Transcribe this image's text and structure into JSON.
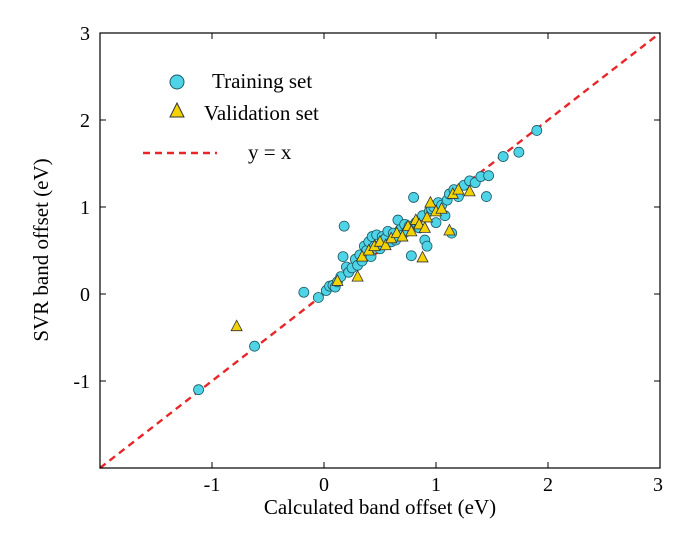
{
  "chart_data": {
    "type": "scatter",
    "xlabel": "Calculated band offset (eV)",
    "ylabel": "SVR band offset (eV)",
    "xlim": [
      -2,
      3
    ],
    "ylim": [
      -2,
      3
    ],
    "xticks": [
      -1,
      0,
      1,
      2,
      3
    ],
    "yticks": [
      -1,
      0,
      1,
      2,
      3
    ],
    "x_tick_labels": [
      "-1",
      "0",
      "1",
      "2",
      "3"
    ],
    "y_tick_labels": [
      "-1",
      "0",
      "1",
      "2",
      "3"
    ],
    "grid": false,
    "legend_position": "top-left",
    "series": [
      {
        "name": "Training set",
        "marker": "circle",
        "color": "#4fd3e6",
        "points": [
          [
            -1.12,
            -1.1
          ],
          [
            -0.62,
            -0.6
          ],
          [
            -0.18,
            0.02
          ],
          [
            -0.05,
            -0.04
          ],
          [
            0.02,
            0.04
          ],
          [
            0.05,
            0.09
          ],
          [
            0.08,
            0.1
          ],
          [
            0.1,
            0.08
          ],
          [
            0.12,
            0.14
          ],
          [
            0.15,
            0.2
          ],
          [
            0.17,
            0.43
          ],
          [
            0.18,
            0.78
          ],
          [
            0.2,
            0.31
          ],
          [
            0.22,
            0.25
          ],
          [
            0.25,
            0.3
          ],
          [
            0.28,
            0.4
          ],
          [
            0.3,
            0.33
          ],
          [
            0.32,
            0.45
          ],
          [
            0.34,
            0.38
          ],
          [
            0.36,
            0.55
          ],
          [
            0.38,
            0.5
          ],
          [
            0.4,
            0.6
          ],
          [
            0.42,
            0.43
          ],
          [
            0.43,
            0.66
          ],
          [
            0.45,
            0.55
          ],
          [
            0.47,
            0.68
          ],
          [
            0.5,
            0.52
          ],
          [
            0.52,
            0.66
          ],
          [
            0.55,
            0.64
          ],
          [
            0.57,
            0.72
          ],
          [
            0.6,
            0.6
          ],
          [
            0.62,
            0.7
          ],
          [
            0.64,
            0.62
          ],
          [
            0.66,
            0.85
          ],
          [
            0.68,
            0.74
          ],
          [
            0.7,
            0.68
          ],
          [
            0.72,
            0.8
          ],
          [
            0.74,
            0.72
          ],
          [
            0.76,
            0.78
          ],
          [
            0.78,
            0.44
          ],
          [
            0.8,
            1.11
          ],
          [
            0.82,
            0.82
          ],
          [
            0.85,
            0.76
          ],
          [
            0.88,
            0.9
          ],
          [
            0.9,
            0.62
          ],
          [
            0.92,
            0.55
          ],
          [
            0.94,
            0.95
          ],
          [
            0.96,
            0.98
          ],
          [
            0.98,
            1.0
          ],
          [
            1.0,
            0.82
          ],
          [
            1.02,
            1.05
          ],
          [
            1.05,
            1.02
          ],
          [
            1.08,
            0.9
          ],
          [
            1.1,
            1.08
          ],
          [
            1.12,
            1.15
          ],
          [
            1.14,
            0.7
          ],
          [
            1.16,
            1.2
          ],
          [
            1.2,
            1.12
          ],
          [
            1.25,
            1.25
          ],
          [
            1.3,
            1.3
          ],
          [
            1.35,
            1.28
          ],
          [
            1.4,
            1.35
          ],
          [
            1.45,
            1.12
          ],
          [
            1.47,
            1.36
          ],
          [
            1.6,
            1.58
          ],
          [
            1.74,
            1.63
          ],
          [
            1.9,
            1.88
          ]
        ]
      },
      {
        "name": "Validation set",
        "marker": "triangle",
        "color": "#f2d200",
        "points": [
          [
            -0.78,
            -0.37
          ],
          [
            0.12,
            0.15
          ],
          [
            0.3,
            0.2
          ],
          [
            0.34,
            0.43
          ],
          [
            0.4,
            0.5
          ],
          [
            0.45,
            0.55
          ],
          [
            0.5,
            0.6
          ],
          [
            0.55,
            0.56
          ],
          [
            0.6,
            0.64
          ],
          [
            0.65,
            0.7
          ],
          [
            0.7,
            0.66
          ],
          [
            0.75,
            0.78
          ],
          [
            0.78,
            0.72
          ],
          [
            0.82,
            0.85
          ],
          [
            0.85,
            0.8
          ],
          [
            0.88,
            0.42
          ],
          [
            0.9,
            0.76
          ],
          [
            0.92,
            0.88
          ],
          [
            0.95,
            1.05
          ],
          [
            1.0,
            0.95
          ],
          [
            1.05,
            0.98
          ],
          [
            1.12,
            0.73
          ],
          [
            1.15,
            1.15
          ],
          [
            1.2,
            1.2
          ],
          [
            1.3,
            1.18
          ]
        ]
      },
      {
        "name": "y = x",
        "type": "line",
        "style": "dashed",
        "color": "#e8262a",
        "points": [
          [
            -2,
            -2
          ],
          [
            3,
            3
          ]
        ]
      }
    ]
  }
}
